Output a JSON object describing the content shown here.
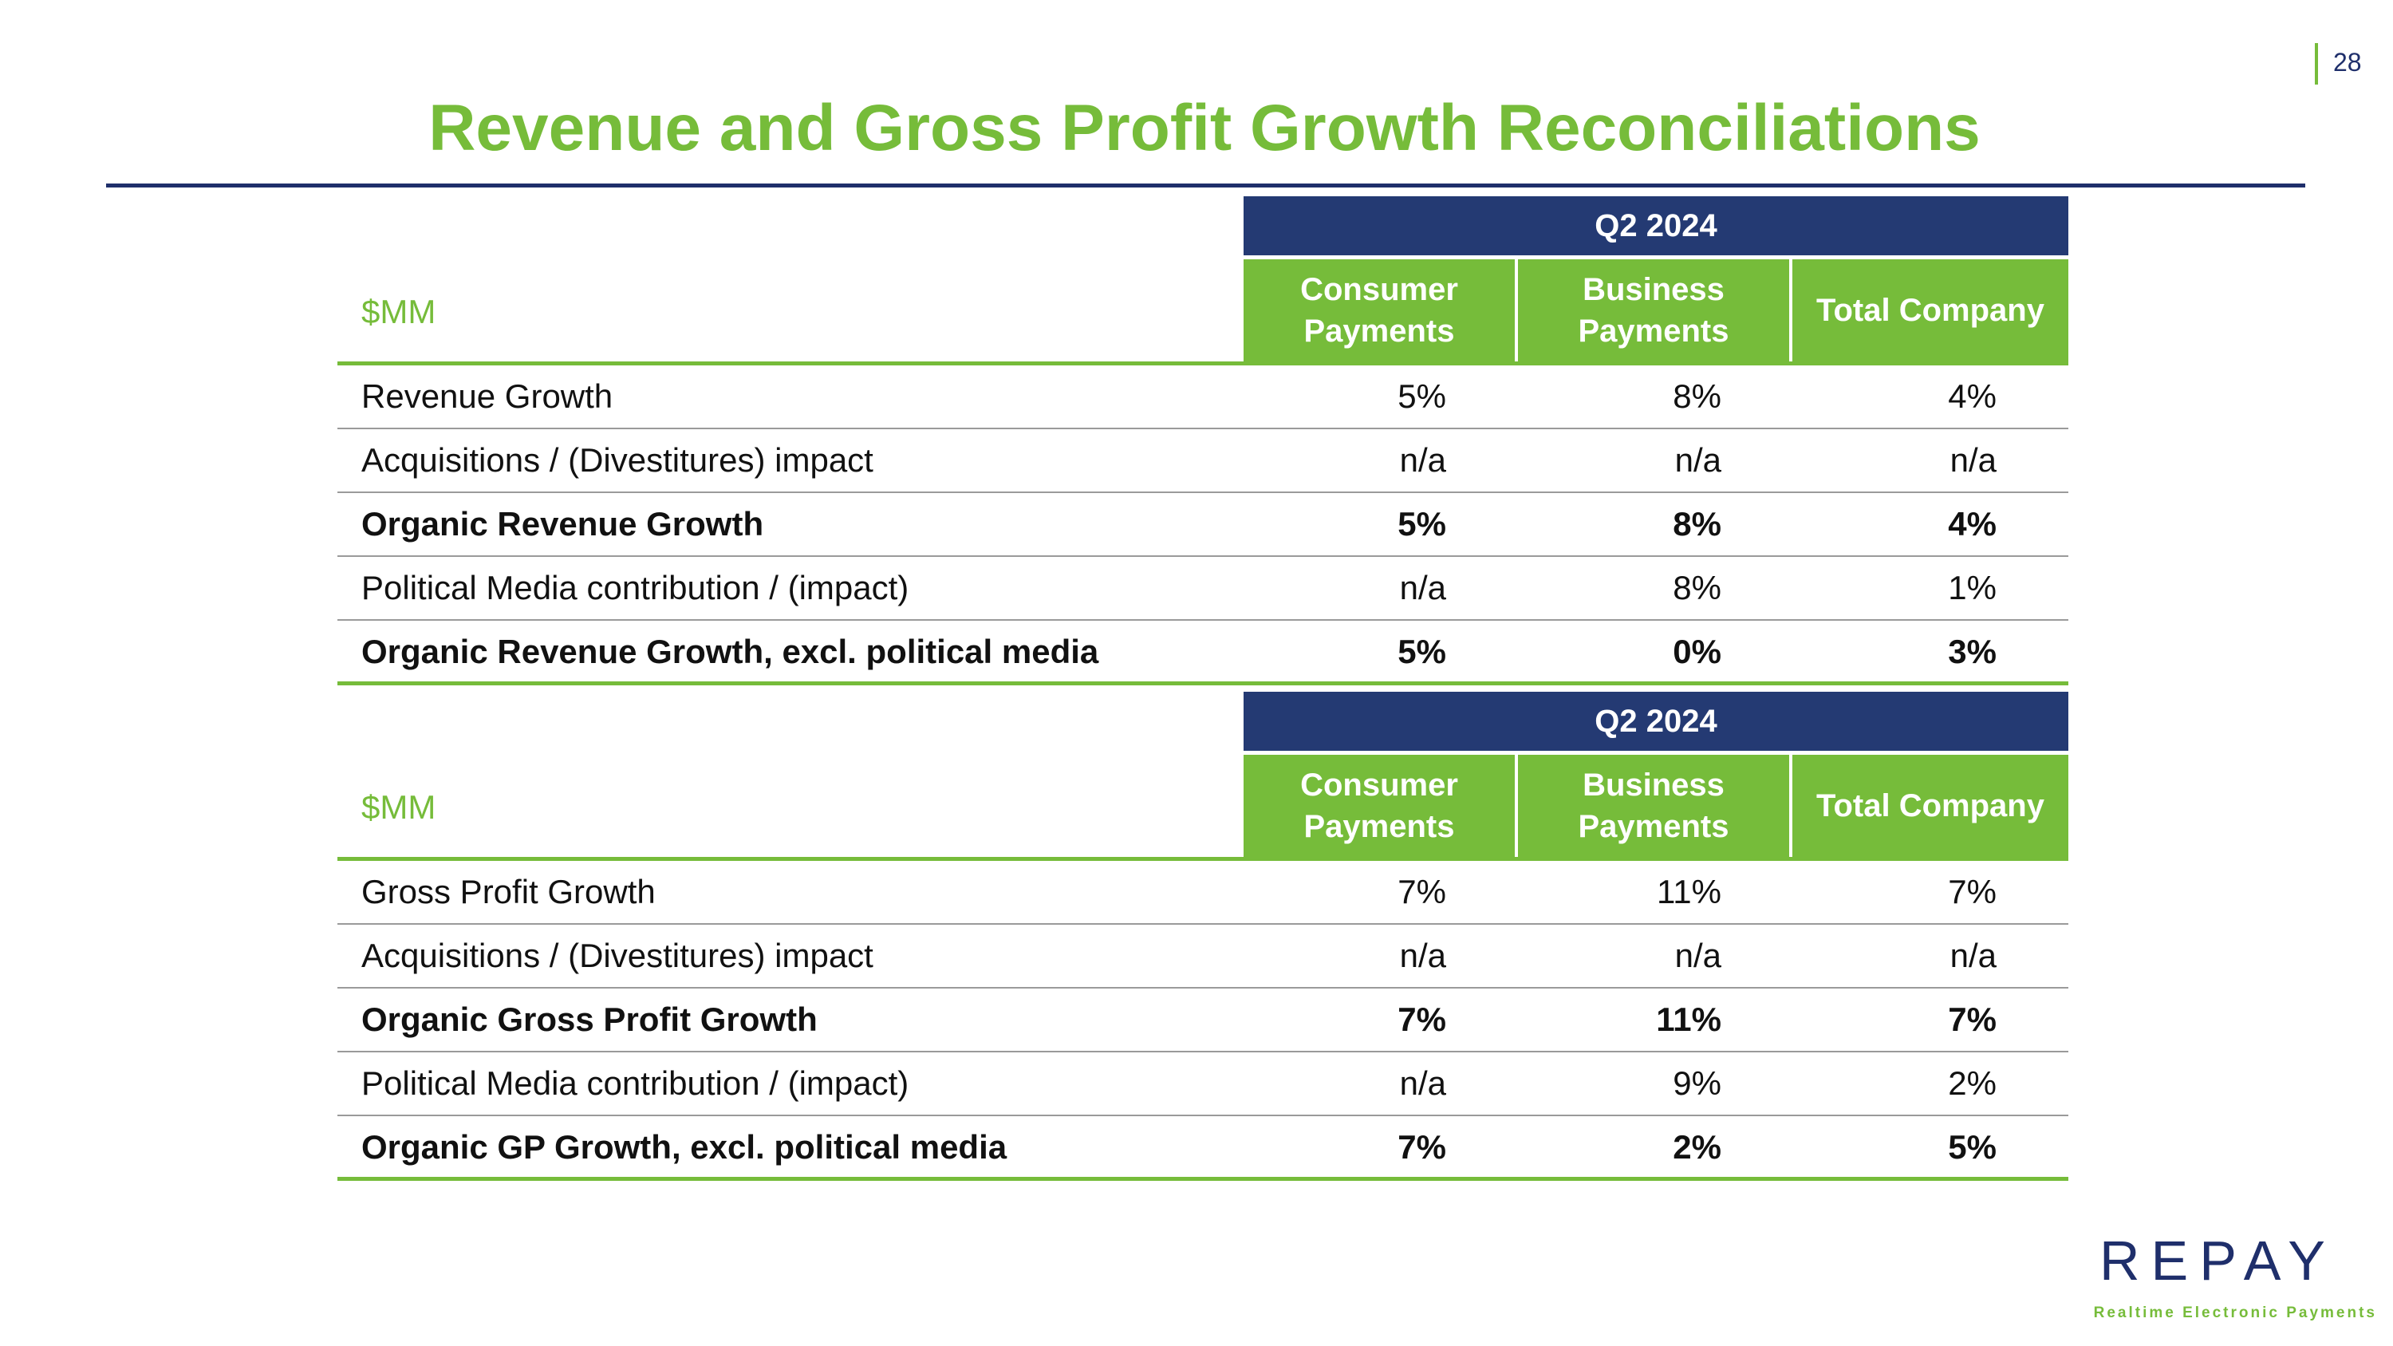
{
  "page_number": "28",
  "title": "Revenue and Gross Profit Growth Reconciliations",
  "tables": [
    {
      "period": "Q2 2024",
      "unit": "$MM",
      "columns": [
        "Consumer Payments",
        "Business Payments",
        "Total Company"
      ],
      "rows": [
        {
          "label": "Revenue Growth",
          "bold": false,
          "values": [
            "5%",
            "8%",
            "4%"
          ]
        },
        {
          "label": "Acquisitions / (Divestitures) impact",
          "bold": false,
          "values": [
            "n/a",
            "n/a",
            "n/a"
          ]
        },
        {
          "label": "Organic Revenue Growth",
          "bold": true,
          "values": [
            "5%",
            "8%",
            "4%"
          ]
        },
        {
          "label": "Political Media contribution / (impact)",
          "bold": false,
          "values": [
            "n/a",
            "8%",
            "1%"
          ]
        },
        {
          "label": "Organic Revenue Growth, excl. political media",
          "bold": true,
          "values": [
            "5%",
            "0%",
            "3%"
          ]
        }
      ]
    },
    {
      "period": "Q2 2024",
      "unit": "$MM",
      "columns": [
        "Consumer Payments",
        "Business Payments",
        "Total Company"
      ],
      "rows": [
        {
          "label": "Gross Profit Growth",
          "bold": false,
          "values": [
            "7%",
            "11%",
            "7%"
          ]
        },
        {
          "label": "Acquisitions / (Divestitures) impact",
          "bold": false,
          "values": [
            "n/a",
            "n/a",
            "n/a"
          ]
        },
        {
          "label": "Organic Gross Profit Growth",
          "bold": true,
          "values": [
            "7%",
            "11%",
            "7%"
          ]
        },
        {
          "label": "Political Media contribution / (impact)",
          "bold": false,
          "values": [
            "n/a",
            "9%",
            "2%"
          ]
        },
        {
          "label": "Organic GP Growth, excl. political media",
          "bold": true,
          "values": [
            "7%",
            "2%",
            "5%"
          ]
        }
      ]
    }
  ],
  "logo": {
    "wordmark": "REPAY",
    "tagline": "Realtime Electronic Payments",
    "colors": {
      "navy": "#1f2f6b",
      "green": "#76bc3a"
    }
  }
}
